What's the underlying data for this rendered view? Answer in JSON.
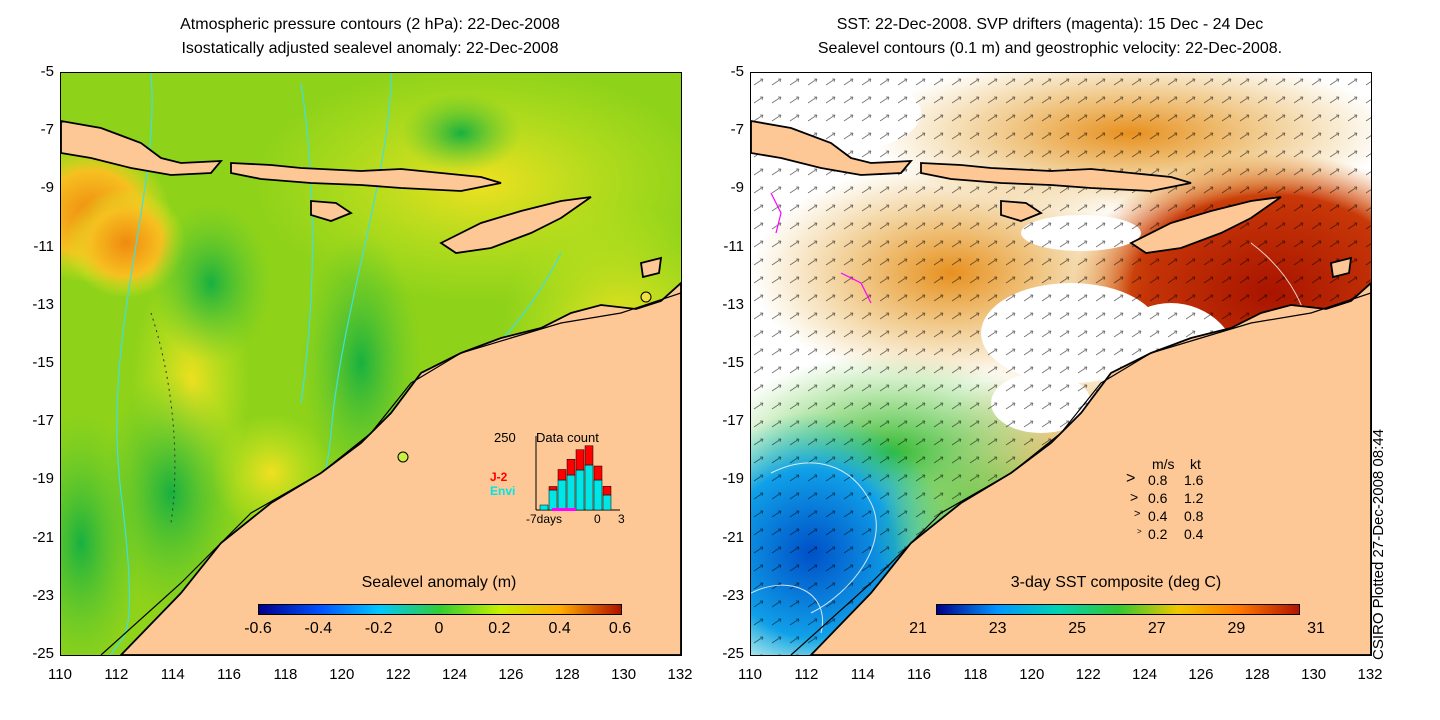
{
  "left_map": {
    "title_line1": "Atmospheric pressure contours (2 hPa): 22-Dec-2008",
    "title_line2": "Isostatically adjusted sealevel anomaly: 22-Dec-2008",
    "colorbar": {
      "label": "Sealevel anomaly (m)",
      "ticks": [
        "-0.6",
        "-0.4",
        "-0.2",
        "0",
        "0.2",
        "0.4",
        "0.6"
      ],
      "colors": [
        "#00008b",
        "#0050ff",
        "#00c8ff",
        "#32cd32",
        "#c8f000",
        "#ffaa00",
        "#b01000"
      ]
    },
    "data_count": {
      "title": "Data count",
      "max_label": "250",
      "x_ticks": [
        "-7days",
        "0",
        "3"
      ],
      "legend": [
        {
          "name": "J-2",
          "color": "#ff0000"
        },
        {
          "name": "Envi",
          "color": "#00e5e5"
        }
      ]
    }
  },
  "right_map": {
    "title_line1": "SST: 22-Dec-2008. SVP drifters (magenta): 15 Dec - 24 Dec",
    "title_line2": "Sealevel contours (0.1 m) and geostrophic velocity: 22-Dec-2008.",
    "colorbar": {
      "label": "3-day SST composite (deg C)",
      "ticks": [
        "21",
        "23",
        "25",
        "27",
        "29",
        "31"
      ],
      "colors": [
        "#00008b",
        "#0096ff",
        "#00d2b4",
        "#32c832",
        "#f0c800",
        "#ff7800",
        "#b41400"
      ]
    },
    "velocity_legend": {
      "header_ms": "m/s",
      "header_kt": "kt",
      "rows": [
        {
          "ms": "0.8",
          "kt": "1.6"
        },
        {
          "ms": "0.6",
          "kt": "1.2"
        },
        {
          "ms": "0.4",
          "kt": "0.8"
        },
        {
          "ms": "0.2",
          "kt": "0.4"
        }
      ]
    }
  },
  "axes": {
    "lat_ticks": [
      "-5",
      "-7",
      "-9",
      "-11",
      "-13",
      "-15",
      "-17",
      "-19",
      "-21",
      "-23",
      "-25"
    ],
    "lon_ticks": [
      "110",
      "112",
      "114",
      "116",
      "118",
      "120",
      "122",
      "124",
      "126",
      "128",
      "130",
      "132"
    ]
  },
  "colors": {
    "land": "#fdc896",
    "contour": "#40e0e0",
    "ocean_default": "#8ed21a"
  },
  "footer_stamp": "CSIRO Plotted 27-Dec-2008 08:44"
}
